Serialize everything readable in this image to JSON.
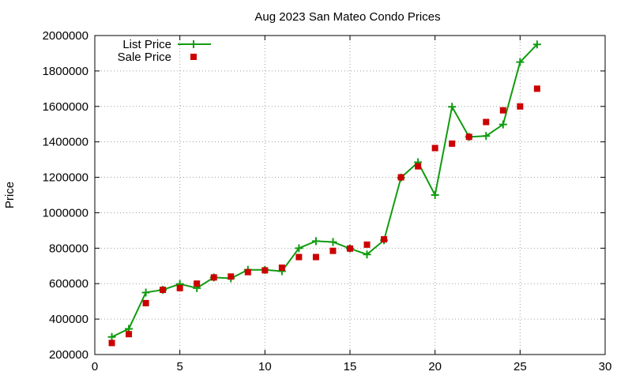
{
  "chart_data": {
    "type": "line",
    "title": "Aug 2023 San Mateo Condo Prices",
    "xlabel": "",
    "ylabel": "Price",
    "xlim": [
      0,
      30
    ],
    "ylim": [
      200000,
      2000000
    ],
    "x_ticks": [
      0,
      5,
      10,
      15,
      20,
      25,
      30
    ],
    "y_ticks": [
      200000,
      400000,
      600000,
      800000,
      1000000,
      1200000,
      1400000,
      1600000,
      1800000,
      2000000
    ],
    "x_tick_labels": [
      "0",
      "5",
      "10",
      "15",
      "20",
      "25",
      "30"
    ],
    "y_tick_labels": [
      "200000",
      "400000",
      "600000",
      "800000",
      "1000000",
      "1200000",
      "1400000",
      "1600000",
      "1800000",
      "2000000"
    ],
    "grid": true,
    "legend_position": "top-left",
    "series": [
      {
        "name": "List Price",
        "style": "line-with-plus-markers",
        "color": "#109c10",
        "x": [
          1,
          2,
          3,
          4,
          5,
          6,
          7,
          8,
          9,
          10,
          11,
          12,
          13,
          14,
          15,
          16,
          17,
          18,
          19,
          20,
          21,
          22,
          23,
          24,
          25,
          26
        ],
        "y": [
          299000,
          345000,
          550000,
          565000,
          598000,
          575000,
          635000,
          630000,
          678000,
          678000,
          670000,
          800000,
          840000,
          835000,
          798000,
          765000,
          845000,
          1198000,
          1285000,
          1100000,
          1598000,
          1428000,
          1433000,
          1498000,
          1850000,
          1950000
        ]
      },
      {
        "name": "Sale Price",
        "style": "square-markers",
        "color": "#cc0000",
        "x": [
          1,
          2,
          3,
          4,
          5,
          6,
          7,
          8,
          9,
          10,
          11,
          12,
          13,
          14,
          15,
          16,
          17,
          18,
          19,
          20,
          21,
          22,
          23,
          24,
          25,
          26
        ],
        "y": [
          265000,
          315000,
          490000,
          565000,
          575000,
          600000,
          635000,
          640000,
          665000,
          675000,
          690000,
          750000,
          750000,
          785000,
          798000,
          820000,
          850000,
          1200000,
          1262000,
          1365000,
          1390000,
          1428000,
          1512000,
          1578000,
          1600000,
          1700000
        ]
      }
    ]
  }
}
